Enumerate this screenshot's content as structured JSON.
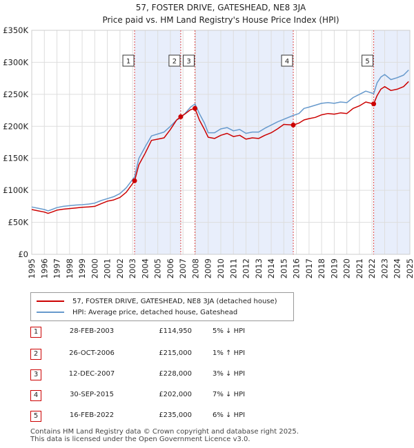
{
  "chart_data": {
    "type": "line",
    "title": "57, FOSTER DRIVE, GATESHEAD, NE8 3JA",
    "subtitle": "Price paid vs. HM Land Registry's House Price Index (HPI)",
    "xlim": [
      1995,
      2025
    ],
    "ylim": [
      0,
      350000
    ],
    "x_ticks": [
      "1995",
      "1996",
      "1997",
      "1998",
      "1999",
      "2000",
      "2001",
      "2002",
      "2003",
      "2004",
      "2005",
      "2006",
      "2007",
      "2008",
      "2009",
      "2010",
      "2011",
      "2012",
      "2013",
      "2014",
      "2015",
      "2016",
      "2017",
      "2018",
      "2019",
      "2020",
      "2021",
      "2022",
      "2023",
      "2024",
      "2025"
    ],
    "y_ticks": [
      {
        "value": 0,
        "label": "£0"
      },
      {
        "value": 50000,
        "label": "£50K"
      },
      {
        "value": 100000,
        "label": "£100K"
      },
      {
        "value": 150000,
        "label": "£150K"
      },
      {
        "value": 200000,
        "label": "£200K"
      },
      {
        "value": 250000,
        "label": "£250K"
      },
      {
        "value": 300000,
        "label": "£300K"
      },
      {
        "value": 350000,
        "label": "£350K"
      }
    ],
    "series": [
      {
        "name": "57, FOSTER DRIVE, GATESHEAD, NE8 3JA (detached house)",
        "color": "#cc0000",
        "points": [
          [
            1995.0,
            70000
          ],
          [
            1995.5,
            68000
          ],
          [
            1996.0,
            66000
          ],
          [
            1996.3,
            64000
          ],
          [
            1996.6,
            66000
          ],
          [
            1997.0,
            69000
          ],
          [
            1997.5,
            70500
          ],
          [
            1998.0,
            71500
          ],
          [
            1998.5,
            72500
          ],
          [
            1999.0,
            73500
          ],
          [
            1999.5,
            74000
          ],
          [
            2000.0,
            75000
          ],
          [
            2000.5,
            79000
          ],
          [
            2001.0,
            83000
          ],
          [
            2001.5,
            85000
          ],
          [
            2002.0,
            89000
          ],
          [
            2002.5,
            97000
          ],
          [
            2003.16,
            114950
          ],
          [
            2003.5,
            140000
          ],
          [
            2004.0,
            158000
          ],
          [
            2004.5,
            178000
          ],
          [
            2005.0,
            180000
          ],
          [
            2005.5,
            182000
          ],
          [
            2006.0,
            195000
          ],
          [
            2006.5,
            210000
          ],
          [
            2006.82,
            215000
          ],
          [
            2007.2,
            220000
          ],
          [
            2007.6,
            226000
          ],
          [
            2007.95,
            228000
          ],
          [
            2008.3,
            210000
          ],
          [
            2008.7,
            195000
          ],
          [
            2009.0,
            183000
          ],
          [
            2009.5,
            181000
          ],
          [
            2010.0,
            186000
          ],
          [
            2010.5,
            189000
          ],
          [
            2011.0,
            184000
          ],
          [
            2011.5,
            186000
          ],
          [
            2012.0,
            180000
          ],
          [
            2012.5,
            182000
          ],
          [
            2013.0,
            181000
          ],
          [
            2013.5,
            186000
          ],
          [
            2014.0,
            190000
          ],
          [
            2014.5,
            196000
          ],
          [
            2015.0,
            203000
          ],
          [
            2015.75,
            202000
          ],
          [
            2016.2,
            205000
          ],
          [
            2016.6,
            210000
          ],
          [
            2017.0,
            212000
          ],
          [
            2017.5,
            214000
          ],
          [
            2018.0,
            218000
          ],
          [
            2018.5,
            220000
          ],
          [
            2019.0,
            219000
          ],
          [
            2019.5,
            221000
          ],
          [
            2020.0,
            220000
          ],
          [
            2020.5,
            228000
          ],
          [
            2021.0,
            232000
          ],
          [
            2021.5,
            238000
          ],
          [
            2022.13,
            235000
          ],
          [
            2022.4,
            248000
          ],
          [
            2022.7,
            258000
          ],
          [
            2023.0,
            262000
          ],
          [
            2023.5,
            256000
          ],
          [
            2024.0,
            258000
          ],
          [
            2024.5,
            262000
          ],
          [
            2024.9,
            270000
          ]
        ]
      },
      {
        "name": "HPI: Average price, detached house, Gateshead",
        "color": "#6699cc",
        "points": [
          [
            1995.0,
            74000
          ],
          [
            1995.5,
            72000
          ],
          [
            1996.0,
            70000
          ],
          [
            1996.3,
            68000
          ],
          [
            1996.6,
            70000
          ],
          [
            1997.0,
            73000
          ],
          [
            1997.5,
            75000
          ],
          [
            1998.0,
            76000
          ],
          [
            1998.5,
            77000
          ],
          [
            1999.0,
            77500
          ],
          [
            1999.5,
            78500
          ],
          [
            2000.0,
            80000
          ],
          [
            2000.5,
            84000
          ],
          [
            2001.0,
            87000
          ],
          [
            2001.5,
            90000
          ],
          [
            2002.0,
            95000
          ],
          [
            2002.5,
            104000
          ],
          [
            2003.16,
            121000
          ],
          [
            2003.5,
            150000
          ],
          [
            2004.0,
            168000
          ],
          [
            2004.5,
            185000
          ],
          [
            2005.0,
            188000
          ],
          [
            2005.5,
            191000
          ],
          [
            2006.0,
            200000
          ],
          [
            2006.5,
            210000
          ],
          [
            2006.82,
            213000
          ],
          [
            2007.2,
            221000
          ],
          [
            2007.6,
            230000
          ],
          [
            2007.95,
            235000
          ],
          [
            2008.3,
            220000
          ],
          [
            2008.7,
            205000
          ],
          [
            2009.0,
            190000
          ],
          [
            2009.5,
            190000
          ],
          [
            2010.0,
            196000
          ],
          [
            2010.5,
            198000
          ],
          [
            2011.0,
            193000
          ],
          [
            2011.5,
            195000
          ],
          [
            2012.0,
            189000
          ],
          [
            2012.5,
            191000
          ],
          [
            2013.0,
            191000
          ],
          [
            2013.5,
            197000
          ],
          [
            2014.0,
            202000
          ],
          [
            2014.5,
            207000
          ],
          [
            2015.0,
            211000
          ],
          [
            2015.75,
            217000
          ],
          [
            2016.2,
            220000
          ],
          [
            2016.6,
            228000
          ],
          [
            2017.0,
            230000
          ],
          [
            2017.5,
            233000
          ],
          [
            2018.0,
            236000
          ],
          [
            2018.5,
            237000
          ],
          [
            2019.0,
            236000
          ],
          [
            2019.5,
            238000
          ],
          [
            2020.0,
            237000
          ],
          [
            2020.5,
            245000
          ],
          [
            2021.0,
            250000
          ],
          [
            2021.5,
            255000
          ],
          [
            2022.13,
            251000
          ],
          [
            2022.4,
            268000
          ],
          [
            2022.7,
            277000
          ],
          [
            2023.0,
            281000
          ],
          [
            2023.5,
            273000
          ],
          [
            2024.0,
            276000
          ],
          [
            2024.5,
            280000
          ],
          [
            2024.9,
            288000
          ]
        ]
      }
    ],
    "shaded_periods": [
      [
        2003.16,
        2006.82
      ],
      [
        2007.95,
        2015.75
      ],
      [
        2022.13,
        2025.0
      ]
    ],
    "sales": [
      {
        "num": "1",
        "x": 2003.16,
        "price": 114950,
        "date": "28-FEB-2003",
        "price_label": "£114,950",
        "hpi": "5% ↓ HPI"
      },
      {
        "num": "2",
        "x": 2006.82,
        "price": 215000,
        "date": "26-OCT-2006",
        "price_label": "£215,000",
        "hpi": "1% ↑ HPI"
      },
      {
        "num": "3",
        "x": 2007.95,
        "price": 228000,
        "date": "12-DEC-2007",
        "price_label": "£228,000",
        "hpi": "3% ↓ HPI"
      },
      {
        "num": "4",
        "x": 2015.75,
        "price": 202000,
        "date": "30-SEP-2015",
        "price_label": "£202,000",
        "hpi": "7% ↓ HPI"
      },
      {
        "num": "5",
        "x": 2022.13,
        "price": 235000,
        "date": "16-FEB-2022",
        "price_label": "£235,000",
        "hpi": "6% ↓ HPI"
      }
    ],
    "legend": {
      "sold_label": "57, FOSTER DRIVE, GATESHEAD, NE8 3JA (detached house)",
      "hpi_label": "HPI: Average price, detached house, Gateshead"
    }
  },
  "footer": {
    "line1": "Contains HM Land Registry data © Crown copyright and database right 2025.",
    "line2": "This data is licensed under the Open Government Licence v3.0."
  }
}
